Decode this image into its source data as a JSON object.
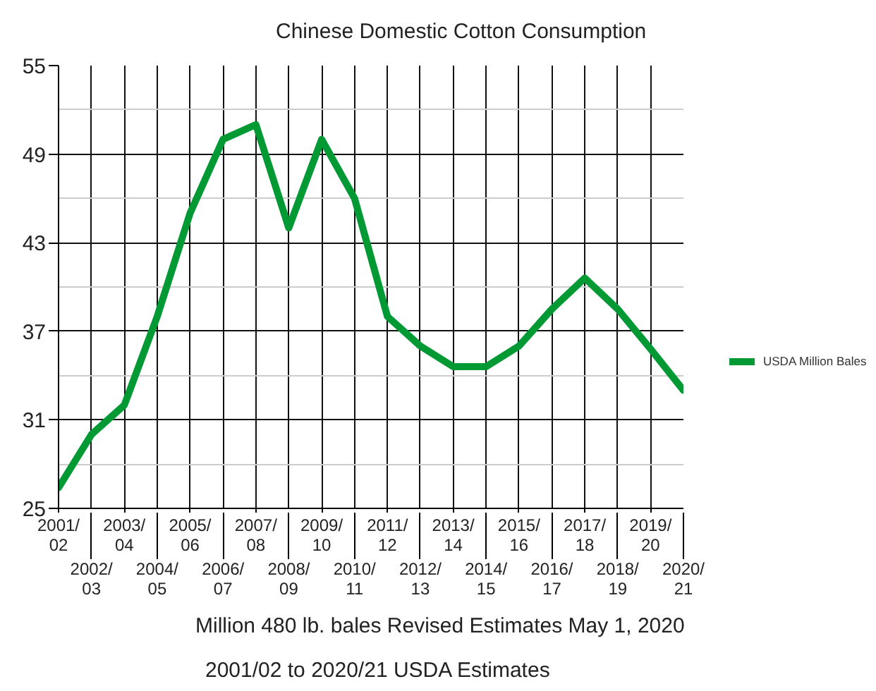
{
  "chart_data": {
    "type": "line",
    "title": "Chinese Domestic Cotton Consumption",
    "categories": [
      "2001/02",
      "2002/03",
      "2003/04",
      "2004/05",
      "2005/06",
      "2006/07",
      "2007/08",
      "2008/09",
      "2009/10",
      "2010/11",
      "2011/12",
      "2012/13",
      "2013/14",
      "2014/15",
      "2015/16",
      "2016/17",
      "2017/18",
      "2018/19",
      "2019/20",
      "2020/21"
    ],
    "series": [
      {
        "name": "USDA Million Bales",
        "color": "#009933",
        "values": [
          26.4,
          30.0,
          32.0,
          38.0,
          45.0,
          50.0,
          51.0,
          44.0,
          50.0,
          46.0,
          38.0,
          36.0,
          34.6,
          34.6,
          36.0,
          38.5,
          40.6,
          38.5,
          35.8,
          33.0
        ]
      }
    ],
    "ylim": [
      25,
      55
    ],
    "yticks": [
      25,
      31,
      37,
      43,
      49,
      55
    ],
    "grid": true,
    "legend": "right",
    "marker": "none",
    "line_style": "solid",
    "annotations": [
      "Million 480 lb. bales  Revised Estimates May 1, 2020",
      "2001/02 to 2020/21  USDA Estimates"
    ]
  }
}
